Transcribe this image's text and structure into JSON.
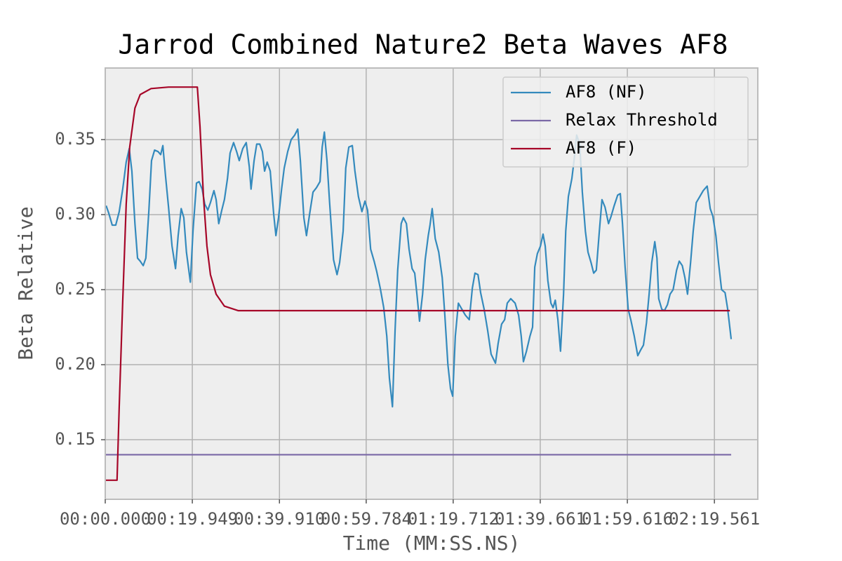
{
  "chart_data": {
    "type": "line",
    "title": "Jarrod Combined Nature2 Beta Waves AF8",
    "x_label": "Time (MM:SS.NS)",
    "y_label": "Beta Relative",
    "xlim": [
      0,
      149.5
    ],
    "ylim": [
      0.1103,
      0.3977
    ],
    "xticks": [
      {
        "value": 0,
        "label": "00:00.000"
      },
      {
        "value": 19.949,
        "label": "00:19.949"
      },
      {
        "value": 39.91,
        "label": "00:39.910"
      },
      {
        "value": 59.784,
        "label": "00:59.784"
      },
      {
        "value": 79.712,
        "label": "01:19.712"
      },
      {
        "value": 99.661,
        "label": "01:39.661"
      },
      {
        "value": 119.616,
        "label": "01:59.616"
      },
      {
        "value": 139.561,
        "label": "02:19.561"
      }
    ],
    "yticks": [
      0.15,
      {
        "value": 0.2,
        "label": "0.20"
      },
      0.25,
      {
        "value": 0.3,
        "label": "0.30"
      },
      0.35
    ],
    "grid": true,
    "legend": "upper right",
    "series": [
      {
        "name": "AF8 (NF)",
        "color": "#348abd",
        "x": [
          0.2,
          0.8,
          1.6,
          2.4,
          3.2,
          4.0,
          4.8,
          5.5,
          6.1,
          6.8,
          7.4,
          8.0,
          8.7,
          9.3,
          10.0,
          10.6,
          11.3,
          12.1,
          12.7,
          13.2,
          13.8,
          14.5,
          15.3,
          16.1,
          16.7,
          17.4,
          18.0,
          18.6,
          19.5,
          20.1,
          20.9,
          21.5,
          22.2,
          22.8,
          23.5,
          24.1,
          24.9,
          25.4,
          26.0,
          26.7,
          27.3,
          28.0,
          28.6,
          29.4,
          30.1,
          30.7,
          31.5,
          32.3,
          33.0,
          33.4,
          34.1,
          34.7,
          35.4,
          36.0,
          36.5,
          37.1,
          37.8,
          38.6,
          39.1,
          39.7,
          40.4,
          41.0,
          41.8,
          42.6,
          43.4,
          44.1,
          44.7,
          45.5,
          46.1,
          46.8,
          47.6,
          48.4,
          49.2,
          49.7,
          50.2,
          50.8,
          51.4,
          52.3,
          53.1,
          53.7,
          54.5,
          55.1,
          55.8,
          56.6,
          57.2,
          58.0,
          58.8,
          59.5,
          60.1,
          60.8,
          61.6,
          62.2,
          63.0,
          63.8,
          64.5,
          65.1,
          65.8,
          66.4,
          67.0,
          67.8,
          68.3,
          69.0,
          69.6,
          70.3,
          70.9,
          71.4,
          72.0,
          72.7,
          73.3,
          74.0,
          74.4,
          74.9,
          75.6,
          76.4,
          77.2,
          77.8,
          78.5,
          79.1,
          79.6,
          80.2,
          80.9,
          81.7,
          82.5,
          83.4,
          84.1,
          84.7,
          85.4,
          86.0,
          86.8,
          87.6,
          88.4,
          89.4,
          90.0,
          90.8,
          91.5,
          92.1,
          92.9,
          93.9,
          94.7,
          95.3,
          95.8,
          96.5,
          97.3,
          97.9,
          98.4,
          99.0,
          99.7,
          100.3,
          100.8,
          101.4,
          102.1,
          102.6,
          103.1,
          103.7,
          104.3,
          105.0,
          105.5,
          106.1,
          106.9,
          107.4,
          108.0,
          108.7,
          109.3,
          110.0,
          110.6,
          111.3,
          111.9,
          112.5,
          113.2,
          113.8,
          114.5,
          115.3,
          115.9,
          116.6,
          117.4,
          118.0,
          118.5,
          119.1,
          119.8,
          120.4,
          121.2,
          122.0,
          122.7,
          123.3,
          124.0,
          124.6,
          125.2,
          125.9,
          126.4,
          126.8,
          127.5,
          128.1,
          128.8,
          129.4,
          130.1,
          130.9,
          131.5,
          132.2,
          132.8,
          133.4,
          134.1,
          134.7,
          135.4,
          136.2,
          137.0,
          137.9,
          138.6,
          139.2,
          139.9,
          140.5,
          141.2,
          142.0,
          142.6,
          143.4
        ],
        "values": [
          0.306,
          0.301,
          0.293,
          0.293,
          0.302,
          0.317,
          0.335,
          0.344,
          0.329,
          0.294,
          0.271,
          0.269,
          0.266,
          0.271,
          0.303,
          0.336,
          0.343,
          0.342,
          0.34,
          0.346,
          0.326,
          0.305,
          0.279,
          0.264,
          0.286,
          0.304,
          0.298,
          0.275,
          0.255,
          0.289,
          0.321,
          0.322,
          0.317,
          0.307,
          0.303,
          0.308,
          0.316,
          0.31,
          0.294,
          0.303,
          0.31,
          0.324,
          0.341,
          0.348,
          0.342,
          0.336,
          0.344,
          0.348,
          0.332,
          0.317,
          0.336,
          0.347,
          0.347,
          0.342,
          0.329,
          0.335,
          0.329,
          0.3,
          0.286,
          0.298,
          0.317,
          0.331,
          0.342,
          0.35,
          0.353,
          0.357,
          0.336,
          0.298,
          0.286,
          0.3,
          0.315,
          0.318,
          0.322,
          0.345,
          0.355,
          0.336,
          0.308,
          0.27,
          0.26,
          0.268,
          0.289,
          0.331,
          0.345,
          0.346,
          0.329,
          0.312,
          0.302,
          0.309,
          0.303,
          0.277,
          0.269,
          0.262,
          0.251,
          0.238,
          0.219,
          0.191,
          0.172,
          0.223,
          0.263,
          0.294,
          0.298,
          0.294,
          0.277,
          0.264,
          0.261,
          0.247,
          0.229,
          0.247,
          0.27,
          0.286,
          0.293,
          0.304,
          0.284,
          0.275,
          0.258,
          0.233,
          0.2,
          0.184,
          0.179,
          0.219,
          0.241,
          0.237,
          0.233,
          0.23,
          0.251,
          0.261,
          0.26,
          0.248,
          0.237,
          0.223,
          0.207,
          0.201,
          0.214,
          0.227,
          0.23,
          0.241,
          0.244,
          0.241,
          0.233,
          0.219,
          0.202,
          0.209,
          0.219,
          0.225,
          0.265,
          0.274,
          0.279,
          0.287,
          0.279,
          0.256,
          0.241,
          0.238,
          0.243,
          0.23,
          0.209,
          0.247,
          0.289,
          0.312,
          0.324,
          0.336,
          0.353,
          0.347,
          0.315,
          0.289,
          0.275,
          0.268,
          0.261,
          0.263,
          0.289,
          0.31,
          0.305,
          0.294,
          0.299,
          0.306,
          0.313,
          0.314,
          0.294,
          0.265,
          0.237,
          0.23,
          0.219,
          0.206,
          0.21,
          0.213,
          0.228,
          0.247,
          0.268,
          0.282,
          0.271,
          0.244,
          0.237,
          0.236,
          0.24,
          0.247,
          0.25,
          0.263,
          0.269,
          0.266,
          0.258,
          0.247,
          0.268,
          0.289,
          0.308,
          0.312,
          0.316,
          0.319,
          0.304,
          0.299,
          0.286,
          0.268,
          0.25,
          0.248,
          0.237,
          0.217
        ]
      },
      {
        "name": "Relax Threshold",
        "color": "#7a68a6",
        "x": [
          0,
          143.4
        ],
        "values": [
          0.14,
          0.14
        ]
      },
      {
        "name": "AF8 (F)",
        "color": "#a60628",
        "x": [
          0,
          2.7,
          3.2,
          4.0,
          4.8,
          5.6,
          6.8,
          8.0,
          10.5,
          14.5,
          21.1,
          21.7,
          22.5,
          23.3,
          24.1,
          25.4,
          27.3,
          30.5,
          143.1
        ],
        "values": [
          0.123,
          0.123,
          0.172,
          0.242,
          0.307,
          0.345,
          0.371,
          0.38,
          0.384,
          0.385,
          0.385,
          0.359,
          0.312,
          0.279,
          0.26,
          0.247,
          0.239,
          0.236,
          0.236
        ]
      }
    ]
  }
}
